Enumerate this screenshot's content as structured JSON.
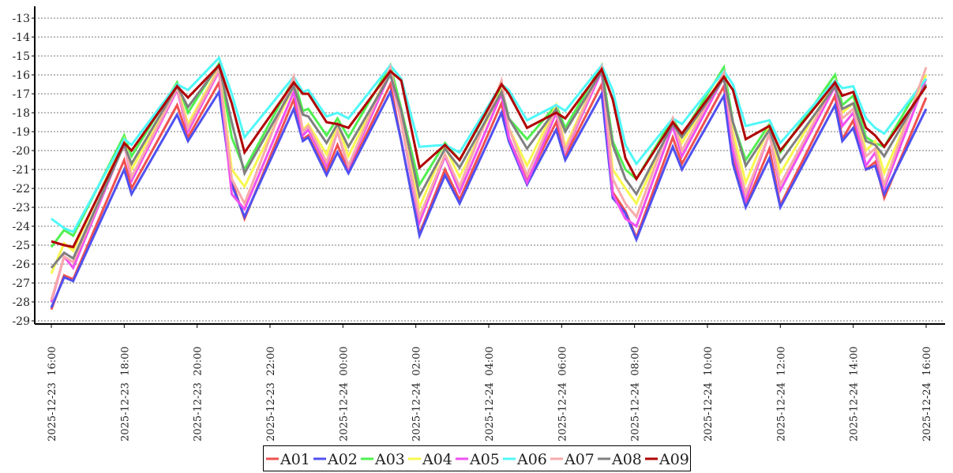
{
  "chart_data": {
    "type": "line",
    "title": "",
    "xlabel": "",
    "ylabel": "",
    "ylim": [
      -29,
      -13
    ],
    "yticks": [
      "-13",
      "-14",
      "-15",
      "-16",
      "-17",
      "-18",
      "-19",
      "-20",
      "-21",
      "-22",
      "-23",
      "-24",
      "-25",
      "-26",
      "-27",
      "-28",
      "-29"
    ],
    "xticks": [
      "2025-12-23 16:00",
      "2025-12-23 18:00",
      "2025-12-23 20:00",
      "2025-12-23 22:00",
      "2025-12-24 00:00",
      "2025-12-24 02:00",
      "2025-12-24 04:00",
      "2025-12-24 06:00",
      "2025-12-24 08:00",
      "2025-12-24 10:00",
      "2025-12-24 12:00",
      "2025-12-24 14:00",
      "2025-12-24 16:00"
    ],
    "grid": "horizontal dashed",
    "legend_position": "bottom-center",
    "x_hours": [
      0,
      0.35,
      0.6,
      2.0,
      2.2,
      3.45,
      3.75,
      4.6,
      4.95,
      5.3,
      6.65,
      6.9,
      7.05,
      7.55,
      7.85,
      8.15,
      9.3,
      9.6,
      10.1,
      10.8,
      11.2,
      12.35,
      12.55,
      13.05,
      13.85,
      14.1,
      15.1,
      15.4,
      15.75,
      16.05,
      17.05,
      17.3,
      18.45,
      18.7,
      19.05,
      19.7,
      20.0,
      21.5,
      21.7,
      22.0,
      22.35,
      22.6,
      22.85,
      24
    ],
    "series": [
      {
        "name": "A01",
        "color": "#f05050",
        "values": [
          -28.4,
          -26.6,
          -26.8,
          -20.5,
          -22.0,
          -17.6,
          -19.3,
          -16.4,
          -21.6,
          -23.6,
          -17.3,
          -19.4,
          -19.2,
          -21.1,
          -19.7,
          -21.1,
          -16.5,
          -19.5,
          -24.4,
          -21.0,
          -22.6,
          -17.5,
          -19.3,
          -21.6,
          -18.5,
          -20.3,
          -16.5,
          -22.2,
          -23.2,
          -24.6,
          -19.3,
          -20.7,
          -16.6,
          -20.3,
          -22.9,
          -19.9,
          -22.9,
          -17.1,
          -19.4,
          -18.4,
          -21.0,
          -20.6,
          -22.5,
          -17.2
        ]
      },
      {
        "name": "A02",
        "color": "#5050f0",
        "values": [
          -28.3,
          -26.7,
          -26.9,
          -21.0,
          -22.3,
          -18.1,
          -19.5,
          -16.9,
          -21.8,
          -23.5,
          -17.8,
          -19.5,
          -19.3,
          -21.3,
          -20.1,
          -21.2,
          -16.9,
          -19.5,
          -24.5,
          -21.3,
          -22.8,
          -18.0,
          -19.5,
          -21.8,
          -18.9,
          -20.5,
          -17.0,
          -22.5,
          -23.3,
          -24.7,
          -19.8,
          -21.0,
          -17.1,
          -20.7,
          -23.0,
          -20.4,
          -23.0,
          -17.6,
          -19.5,
          -18.8,
          -21.0,
          -20.8,
          -22.3,
          -17.8
        ]
      },
      {
        "name": "A03",
        "color": "#50f050",
        "values": [
          -25.1,
          -24.2,
          -24.5,
          -19.2,
          -20.3,
          -16.4,
          -18.0,
          -15.4,
          -19.3,
          -21.0,
          -16.2,
          -17.9,
          -17.8,
          -19.2,
          -18.3,
          -19.3,
          -15.5,
          -17.8,
          -21.8,
          -19.6,
          -20.5,
          -16.6,
          -18.3,
          -19.4,
          -17.6,
          -18.8,
          -15.5,
          -19.5,
          -21.0,
          -21.5,
          -18.3,
          -19.2,
          -15.6,
          -18.5,
          -20.5,
          -18.6,
          -20.1,
          -16.0,
          -17.6,
          -17.1,
          -19.3,
          -19.6,
          -19.8,
          -16.0
        ]
      },
      {
        "name": "A04",
        "color": "#f8f850",
        "values": [
          -26.5,
          -24.9,
          -25.3,
          -19.4,
          -21.0,
          -16.6,
          -18.6,
          -15.6,
          -21.0,
          -21.9,
          -16.6,
          -18.9,
          -18.6,
          -20.2,
          -18.6,
          -20.3,
          -15.7,
          -18.5,
          -23.0,
          -19.8,
          -21.4,
          -16.8,
          -18.8,
          -20.8,
          -17.6,
          -19.8,
          -15.6,
          -21.0,
          -22.0,
          -22.8,
          -18.5,
          -19.6,
          -15.9,
          -19.0,
          -21.7,
          -18.7,
          -21.2,
          -16.3,
          -18.0,
          -17.5,
          -20.0,
          -19.5,
          -21.2,
          -16.0
        ]
      },
      {
        "name": "A05",
        "color": "#f050f0",
        "values": [
          -28.0,
          -25.6,
          -26.2,
          -19.6,
          -21.6,
          -16.8,
          -19.0,
          -15.8,
          -22.3,
          -23.1,
          -16.9,
          -19.2,
          -18.9,
          -20.8,
          -19.0,
          -20.9,
          -15.9,
          -18.5,
          -23.8,
          -20.3,
          -22.2,
          -17.0,
          -19.3,
          -21.7,
          -18.0,
          -20.1,
          -15.8,
          -22.3,
          -23.6,
          -24.0,
          -18.7,
          -20.3,
          -16.1,
          -20.0,
          -22.6,
          -19.1,
          -22.1,
          -16.6,
          -18.7,
          -18.0,
          -20.8,
          -20.1,
          -22.0,
          -16.2
        ]
      },
      {
        "name": "A06",
        "color": "#50f8f8",
        "values": [
          -23.6,
          -24.1,
          -24.3,
          -19.4,
          -19.7,
          -16.5,
          -16.8,
          -15.1,
          -17.0,
          -19.3,
          -16.1,
          -16.9,
          -16.8,
          -18.2,
          -18.0,
          -18.3,
          -15.5,
          -16.2,
          -19.8,
          -19.7,
          -20.1,
          -16.5,
          -16.8,
          -18.4,
          -17.6,
          -17.9,
          -15.5,
          -16.8,
          -19.7,
          -20.7,
          -18.3,
          -18.6,
          -15.8,
          -16.5,
          -18.7,
          -18.4,
          -19.6,
          -16.3,
          -16.7,
          -16.6,
          -18.3,
          -18.8,
          -19.1,
          -16.2
        ]
      },
      {
        "name": "A07",
        "color": "#f8aaaa",
        "values": [
          -27.9,
          -25.6,
          -25.9,
          -19.6,
          -21.4,
          -16.7,
          -18.8,
          -15.7,
          -21.5,
          -22.8,
          -16.1,
          -19.0,
          -18.7,
          -20.6,
          -19.0,
          -20.8,
          -15.6,
          -18.5,
          -23.5,
          -20.2,
          -21.9,
          -16.3,
          -18.8,
          -21.3,
          -17.8,
          -20.0,
          -15.6,
          -21.5,
          -22.8,
          -23.5,
          -18.3,
          -20.0,
          -15.9,
          -19.5,
          -22.3,
          -19.1,
          -21.8,
          -16.4,
          -18.3,
          -17.8,
          -20.3,
          -19.9,
          -21.8,
          -15.6
        ]
      },
      {
        "name": "A08",
        "color": "#808080",
        "values": [
          -26.2,
          -25.4,
          -25.7,
          -19.7,
          -20.7,
          -16.6,
          -17.7,
          -15.5,
          -18.5,
          -21.2,
          -16.6,
          -18.1,
          -18.2,
          -19.6,
          -18.6,
          -19.8,
          -16.0,
          -17.9,
          -22.4,
          -19.9,
          -20.9,
          -16.9,
          -18.3,
          -19.9,
          -17.8,
          -19.0,
          -15.8,
          -19.7,
          -21.5,
          -22.3,
          -18.6,
          -19.3,
          -16.2,
          -18.5,
          -20.8,
          -18.9,
          -20.6,
          -16.6,
          -17.8,
          -17.5,
          -19.5,
          -19.7,
          -20.3,
          -16.5
        ]
      },
      {
        "name": "A09",
        "color": "#b00000",
        "values": [
          -24.8,
          -25.0,
          -25.1,
          -19.6,
          -20.0,
          -16.6,
          -17.2,
          -15.5,
          -17.5,
          -20.1,
          -16.4,
          -17.0,
          -17.0,
          -18.5,
          -18.6,
          -18.8,
          -15.8,
          -16.3,
          -20.9,
          -19.7,
          -20.5,
          -16.5,
          -17.0,
          -18.8,
          -18.0,
          -18.3,
          -15.7,
          -17.3,
          -20.4,
          -21.5,
          -18.5,
          -19.1,
          -16.1,
          -16.8,
          -19.4,
          -18.7,
          -20.0,
          -16.4,
          -17.1,
          -16.9,
          -18.8,
          -19.2,
          -19.8,
          -16.6
        ]
      }
    ]
  }
}
